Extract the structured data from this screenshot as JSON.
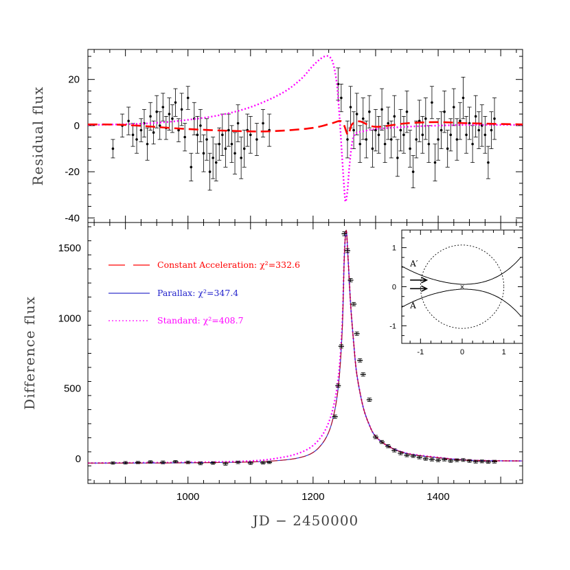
{
  "chart_data": [
    {
      "panel": "residual",
      "type": "scatter",
      "title": "",
      "ylabel": "Residual flux",
      "xlim": [
        840,
        1535
      ],
      "ylim": [
        -42,
        33
      ],
      "yticks": [
        "20",
        "0",
        "-20",
        "-40"
      ],
      "series": [
        {
          "name": "Constant Acceleration",
          "color": "#ff0000",
          "style": "dashed",
          "x": [
            840,
            900,
            1000,
            1100,
            1150,
            1200,
            1230,
            1243,
            1249,
            1256,
            1262,
            1275,
            1300,
            1350,
            1400,
            1450,
            1535
          ],
          "y": [
            0.5,
            0.3,
            -1.5,
            -2.5,
            -2.2,
            -1.0,
            1.0,
            2.0,
            0.5,
            -4.0,
            0.5,
            1.8,
            -0.5,
            1.0,
            1.5,
            1.0,
            0.5
          ]
        },
        {
          "name": "Standard",
          "color": "#ff00ff",
          "style": "dotted",
          "x": [
            840,
            900,
            950,
            1000,
            1050,
            1100,
            1150,
            1180,
            1200,
            1215,
            1225,
            1232,
            1238,
            1242,
            1246,
            1250,
            1252,
            1255,
            1258,
            1262,
            1266,
            1272,
            1280,
            1300,
            1350,
            1400,
            1450,
            1535
          ],
          "y": [
            0.3,
            0.6,
            1.2,
            2.5,
            4.5,
            8.0,
            14.0,
            20.0,
            26.0,
            29.5,
            30.0,
            27.0,
            18.0,
            5.0,
            -12.0,
            -28.0,
            -33.0,
            -28.0,
            -18.0,
            -8.0,
            -4.0,
            -3.0,
            -2.5,
            -1.5,
            -0.5,
            0.0,
            0.3,
            0.3
          ]
        },
        {
          "name": "Residual data",
          "x": [
            880,
            895,
            905,
            912,
            918,
            925,
            930,
            935,
            940,
            945,
            950,
            955,
            960,
            965,
            970,
            975,
            980,
            985,
            990,
            995,
            1000,
            1005,
            1010,
            1015,
            1020,
            1025,
            1030,
            1035,
            1040,
            1045,
            1050,
            1055,
            1060,
            1065,
            1070,
            1075,
            1080,
            1085,
            1090,
            1095,
            1100,
            1110,
            1120,
            1130,
            1240,
            1245,
            1255,
            1260,
            1265,
            1270,
            1275,
            1280,
            1285,
            1290,
            1295,
            1300,
            1305,
            1310,
            1315,
            1320,
            1325,
            1330,
            1335,
            1340,
            1345,
            1350,
            1355,
            1360,
            1365,
            1370,
            1375,
            1380,
            1385,
            1390,
            1395,
            1400,
            1405,
            1410,
            1415,
            1420,
            1425,
            1430,
            1435,
            1440,
            1445,
            1450,
            1455,
            1460,
            1465,
            1470,
            1475,
            1480,
            1485,
            1490
          ],
          "y": [
            -10,
            0,
            2,
            -4,
            -6,
            -2,
            1,
            -8,
            4,
            -3,
            6,
            0,
            8,
            -1,
            5,
            3,
            10,
            -2,
            7,
            -5,
            12,
            -18,
            3,
            -4,
            0,
            -12,
            -6,
            -20,
            -14,
            -16,
            -8,
            -4,
            -10,
            -2,
            -8,
            -12,
            1,
            -14,
            -10,
            -2,
            -4,
            -6,
            1,
            -2,
            18,
            12,
            -6,
            8,
            -2,
            5,
            -8,
            3,
            -6,
            6,
            -10,
            -2,
            -4,
            7,
            -8,
            1,
            -6,
            4,
            -14,
            -2,
            -4,
            6,
            -10,
            -20,
            -6,
            2,
            -4,
            3,
            -8,
            10,
            -16,
            -6,
            -2,
            6,
            -10,
            -4,
            8,
            -6,
            2,
            12,
            -4,
            1,
            -8,
            4,
            -2,
            0,
            -4,
            -16,
            -2,
            3
          ],
          "yerr": [
            4,
            5,
            6,
            5,
            6,
            5,
            6,
            7,
            6,
            5,
            7,
            6,
            6,
            5,
            7,
            6,
            6,
            5,
            7,
            6,
            5,
            6,
            7,
            8,
            7,
            8,
            9,
            8,
            9,
            8,
            7,
            9,
            8,
            7,
            8,
            9,
            8,
            9,
            8,
            7,
            8,
            7,
            6,
            7,
            7,
            6,
            8,
            9,
            8,
            9,
            8,
            9,
            8,
            7,
            8,
            9,
            8,
            9,
            8,
            7,
            8,
            9,
            8,
            9,
            8,
            9,
            8,
            7,
            8,
            9,
            8,
            9,
            8,
            7,
            8,
            9,
            8,
            9,
            8,
            7,
            8,
            9,
            8,
            9,
            8,
            7,
            8,
            9,
            8,
            9,
            8,
            7,
            8,
            9
          ]
        }
      ]
    },
    {
      "panel": "main",
      "type": "line",
      "title": "",
      "xlabel": "JD − 2450000",
      "ylabel": "Difference flux",
      "xlim": [
        840,
        1535
      ],
      "ylim": [
        -175,
        1680
      ],
      "xticks": [
        "1000",
        "1200",
        "1400"
      ],
      "yticks": [
        "1500",
        "1000",
        "500",
        "0"
      ],
      "legend_position": "top-left",
      "series": [
        {
          "name": "Constant Acceleration",
          "label": "Constant Acceleration: χ²=332.6",
          "color": "#ff0000",
          "style": "dashed"
        },
        {
          "name": "Parallax",
          "label": "Parallax: χ²=347.4",
          "color": "#0000ff",
          "style": "solid"
        },
        {
          "name": "Standard",
          "label": "Standard: χ²=408.7",
          "color": "#ff00ff",
          "style": "dotted"
        }
      ],
      "model_standard": {
        "x": [
          840,
          900,
          1000,
          1100,
          1150,
          1180,
          1200,
          1215,
          1225,
          1232,
          1238,
          1243,
          1247,
          1250,
          1253,
          1256,
          1260,
          1265,
          1270,
          1280,
          1290,
          1300,
          1320,
          1350,
          1400,
          1450,
          1535
        ],
        "y": [
          -30,
          -28,
          -25,
          -15,
          10,
          45,
          95,
          170,
          260,
          360,
          500,
          700,
          1000,
          1450,
          1620,
          1420,
          1100,
          820,
          600,
          370,
          240,
          160,
          90,
          40,
          10,
          -10,
          -15
        ]
      },
      "model_fit": {
        "x": [
          840,
          900,
          1000,
          1100,
          1150,
          1180,
          1200,
          1215,
          1225,
          1232,
          1238,
          1243,
          1247,
          1250,
          1253,
          1256,
          1260,
          1265,
          1270,
          1280,
          1290,
          1300,
          1320,
          1350,
          1400,
          1450,
          1535
        ],
        "y": [
          -30,
          -30,
          -28,
          -22,
          -10,
          10,
          45,
          110,
          190,
          290,
          430,
          640,
          960,
          1440,
          1625,
          1420,
          1100,
          820,
          600,
          370,
          240,
          160,
          90,
          38,
          8,
          -10,
          -15
        ]
      },
      "data": {
        "x": [
          880,
          900,
          920,
          940,
          960,
          980,
          1000,
          1020,
          1040,
          1060,
          1080,
          1100,
          1120,
          1130,
          1235,
          1240,
          1245,
          1250,
          1255,
          1260,
          1265,
          1270,
          1275,
          1280,
          1290,
          1300,
          1310,
          1320,
          1330,
          1340,
          1350,
          1360,
          1370,
          1380,
          1390,
          1400,
          1410,
          1420,
          1430,
          1440,
          1450,
          1460,
          1470,
          1480,
          1490
        ],
        "y": [
          -30,
          -28,
          -26,
          -22,
          -25,
          -20,
          -25,
          -32,
          -30,
          -35,
          -25,
          -30,
          -28,
          -25,
          300,
          520,
          800,
          1600,
          1480,
          1270,
          1100,
          890,
          700,
          600,
          420,
          155,
          120,
          90,
          60,
          40,
          25,
          20,
          10,
          0,
          -5,
          -10,
          -5,
          -15,
          -10,
          -8,
          -15,
          -20,
          -18,
          -22,
          -20
        ],
        "yerr": [
          8,
          9,
          8,
          9,
          10,
          8,
          9,
          10,
          9,
          10,
          9,
          10,
          9,
          8,
          12,
          12,
          12,
          14,
          14,
          12,
          12,
          12,
          12,
          12,
          12,
          12,
          11,
          11,
          11,
          11,
          10,
          10,
          10,
          10,
          10,
          10,
          10,
          10,
          10,
          10,
          10,
          10,
          10,
          10,
          10
        ]
      }
    },
    {
      "panel": "inset",
      "type": "line",
      "title": "",
      "xlim": [
        -1.45,
        1.45
      ],
      "ylim": [
        -1.45,
        1.45
      ],
      "xticks": [
        "-1",
        "0",
        "1"
      ],
      "yticks": [
        "1",
        "0",
        "-1"
      ],
      "labels": {
        "upper": "A′",
        "lower": "A"
      },
      "einstein_ring_radius": 1.0,
      "center_marker": "×"
    }
  ]
}
